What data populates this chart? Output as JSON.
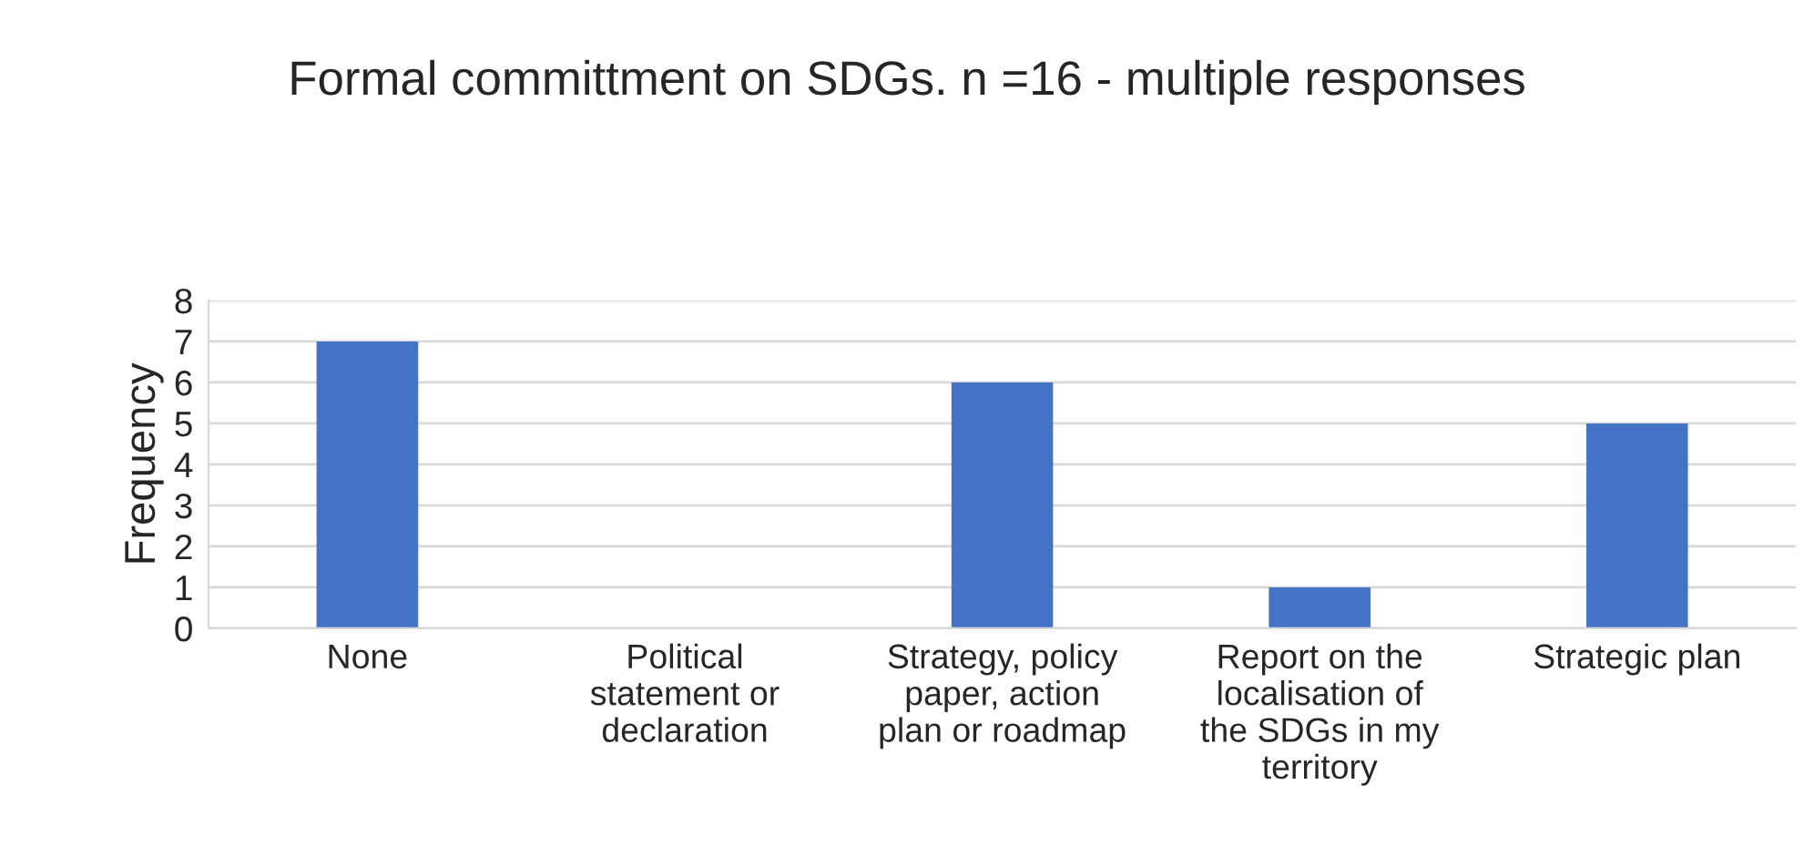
{
  "chart_data": {
    "type": "bar",
    "title": "Formal committment on SDGs. n =16 - multiple responses",
    "ylabel": "Frequency",
    "categories": [
      "None",
      "Political\nstatement or\ndeclaration",
      "Strategy, policy\npaper, action\nplan or roadmap",
      "Report on the\nlocalisation of\nthe SDGs in my\nterritory",
      "Strategic plan"
    ],
    "values": [
      7,
      0,
      6,
      1,
      5
    ],
    "color": "#4472c4",
    "ylim": [
      0,
      8
    ],
    "yticks": [
      0,
      1,
      2,
      3,
      4,
      5,
      6,
      7,
      8
    ],
    "grid": "y"
  }
}
